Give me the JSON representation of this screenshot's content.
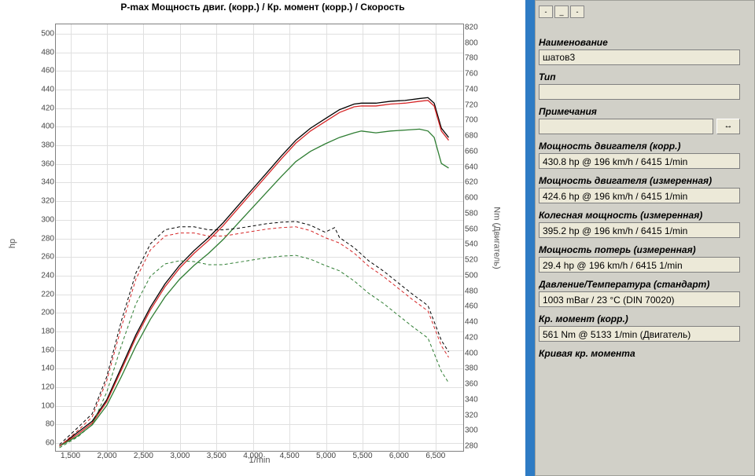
{
  "chart": {
    "title": "P-max Мощность двиг. (корр.) / Кр. момент (корр.) / Скорость",
    "type": "line",
    "x_axis": {
      "label": "1/min",
      "min": 1300,
      "max": 6900,
      "ticks": [
        1500,
        2000,
        2500,
        3000,
        3500,
        4000,
        4500,
        5000,
        5500,
        6000,
        6500
      ],
      "tick_labels": [
        "1,500",
        "2,000",
        "2,500",
        "3,000",
        "3,500",
        "4,000",
        "4,500",
        "5,000",
        "5,500",
        "6,000",
        "6,500"
      ]
    },
    "y1_axis": {
      "label": "hp",
      "min": 50,
      "max": 510,
      "ticks": [
        60,
        80,
        100,
        120,
        140,
        160,
        180,
        200,
        220,
        240,
        260,
        280,
        300,
        320,
        340,
        360,
        380,
        400,
        420,
        440,
        460,
        480,
        500
      ]
    },
    "y2_axis": {
      "label": "Nm (Двигатель)",
      "min": 272,
      "max": 824,
      "ticks": [
        280,
        300,
        320,
        340,
        360,
        380,
        400,
        420,
        440,
        460,
        480,
        500,
        520,
        540,
        560,
        580,
        600,
        620,
        640,
        660,
        680,
        700,
        720,
        740,
        760,
        780,
        800,
        820
      ]
    },
    "grid_color": "#e0e0e0",
    "background": "#ffffff",
    "series": [
      {
        "name": "power_black",
        "axis": "y1",
        "color": "#000000",
        "width": 1.3,
        "dash": "none",
        "data": [
          [
            1350,
            55
          ],
          [
            1600,
            70
          ],
          [
            1800,
            82
          ],
          [
            2000,
            105
          ],
          [
            2200,
            140
          ],
          [
            2400,
            175
          ],
          [
            2600,
            205
          ],
          [
            2800,
            230
          ],
          [
            3000,
            250
          ],
          [
            3200,
            266
          ],
          [
            3400,
            280
          ],
          [
            3600,
            296
          ],
          [
            3800,
            314
          ],
          [
            4000,
            332
          ],
          [
            4200,
            350
          ],
          [
            4400,
            368
          ],
          [
            4600,
            385
          ],
          [
            4800,
            398
          ],
          [
            5000,
            408
          ],
          [
            5200,
            418
          ],
          [
            5400,
            424
          ],
          [
            5500,
            425
          ],
          [
            5700,
            425
          ],
          [
            5900,
            427
          ],
          [
            6100,
            428
          ],
          [
            6300,
            430
          ],
          [
            6415,
            431
          ],
          [
            6500,
            425
          ],
          [
            6600,
            398
          ],
          [
            6700,
            388
          ]
        ]
      },
      {
        "name": "power_red",
        "axis": "y1",
        "color": "#d62728",
        "width": 1.3,
        "dash": "none",
        "data": [
          [
            1350,
            55
          ],
          [
            1600,
            68
          ],
          [
            1800,
            80
          ],
          [
            2000,
            103
          ],
          [
            2200,
            137
          ],
          [
            2400,
            172
          ],
          [
            2600,
            202
          ],
          [
            2800,
            227
          ],
          [
            3000,
            247
          ],
          [
            3200,
            263
          ],
          [
            3400,
            277
          ],
          [
            3600,
            293
          ],
          [
            3800,
            311
          ],
          [
            4000,
            329
          ],
          [
            4200,
            347
          ],
          [
            4400,
            365
          ],
          [
            4600,
            382
          ],
          [
            4800,
            395
          ],
          [
            5000,
            405
          ],
          [
            5200,
            415
          ],
          [
            5400,
            421
          ],
          [
            5500,
            422
          ],
          [
            5700,
            422
          ],
          [
            5900,
            424
          ],
          [
            6100,
            425
          ],
          [
            6300,
            427
          ],
          [
            6415,
            428
          ],
          [
            6500,
            422
          ],
          [
            6600,
            395
          ],
          [
            6700,
            385
          ]
        ]
      },
      {
        "name": "power_green",
        "axis": "y1",
        "color": "#2e7d32",
        "width": 1.3,
        "dash": "none",
        "data": [
          [
            1350,
            55
          ],
          [
            1600,
            66
          ],
          [
            1800,
            78
          ],
          [
            2000,
            99
          ],
          [
            2200,
            130
          ],
          [
            2400,
            163
          ],
          [
            2600,
            192
          ],
          [
            2800,
            216
          ],
          [
            3000,
            235
          ],
          [
            3200,
            250
          ],
          [
            3400,
            263
          ],
          [
            3600,
            278
          ],
          [
            3800,
            295
          ],
          [
            4000,
            312
          ],
          [
            4200,
            329
          ],
          [
            4400,
            346
          ],
          [
            4600,
            362
          ],
          [
            4800,
            373
          ],
          [
            5000,
            381
          ],
          [
            5200,
            388
          ],
          [
            5400,
            393
          ],
          [
            5500,
            395
          ],
          [
            5700,
            393
          ],
          [
            5900,
            395
          ],
          [
            6100,
            396
          ],
          [
            6300,
            397
          ],
          [
            6415,
            395
          ],
          [
            6500,
            388
          ],
          [
            6600,
            360
          ],
          [
            6700,
            355
          ]
        ]
      },
      {
        "name": "torque_black_dash",
        "axis": "y2",
        "color": "#000000",
        "width": 1,
        "dash": "4,3",
        "data": [
          [
            1350,
            280
          ],
          [
            1600,
            302
          ],
          [
            1800,
            320
          ],
          [
            2000,
            368
          ],
          [
            2200,
            440
          ],
          [
            2400,
            502
          ],
          [
            2600,
            540
          ],
          [
            2800,
            558
          ],
          [
            3000,
            562
          ],
          [
            3200,
            562
          ],
          [
            3400,
            558
          ],
          [
            3600,
            558
          ],
          [
            3800,
            560
          ],
          [
            4000,
            563
          ],
          [
            4200,
            566
          ],
          [
            4400,
            568
          ],
          [
            4600,
            569
          ],
          [
            4800,
            564
          ],
          [
            5000,
            555
          ],
          [
            5133,
            561
          ],
          [
            5200,
            548
          ],
          [
            5400,
            535
          ],
          [
            5600,
            518
          ],
          [
            5800,
            505
          ],
          [
            6000,
            490
          ],
          [
            6200,
            475
          ],
          [
            6415,
            460
          ],
          [
            6600,
            415
          ],
          [
            6700,
            400
          ]
        ]
      },
      {
        "name": "torque_red_dash",
        "axis": "y2",
        "color": "#d62728",
        "width": 1,
        "dash": "4,3",
        "data": [
          [
            1350,
            278
          ],
          [
            1600,
            298
          ],
          [
            1800,
            316
          ],
          [
            2000,
            363
          ],
          [
            2200,
            432
          ],
          [
            2400,
            494
          ],
          [
            2600,
            532
          ],
          [
            2800,
            550
          ],
          [
            3000,
            554
          ],
          [
            3200,
            554
          ],
          [
            3400,
            550
          ],
          [
            3600,
            550
          ],
          [
            3800,
            553
          ],
          [
            4000,
            556
          ],
          [
            4200,
            559
          ],
          [
            4400,
            561
          ],
          [
            4600,
            562
          ],
          [
            4800,
            557
          ],
          [
            5000,
            548
          ],
          [
            5200,
            541
          ],
          [
            5400,
            528
          ],
          [
            5600,
            511
          ],
          [
            5800,
            498
          ],
          [
            6000,
            483
          ],
          [
            6200,
            468
          ],
          [
            6415,
            453
          ],
          [
            6600,
            408
          ],
          [
            6700,
            393
          ]
        ]
      },
      {
        "name": "torque_green_dash",
        "axis": "y2",
        "color": "#2e7d32",
        "width": 1,
        "dash": "4,3",
        "data": [
          [
            1350,
            276
          ],
          [
            1600,
            290
          ],
          [
            1800,
            306
          ],
          [
            2000,
            348
          ],
          [
            2200,
            408
          ],
          [
            2400,
            462
          ],
          [
            2600,
            498
          ],
          [
            2800,
            514
          ],
          [
            3000,
            518
          ],
          [
            3200,
            517
          ],
          [
            3400,
            513
          ],
          [
            3600,
            513
          ],
          [
            3800,
            516
          ],
          [
            4000,
            519
          ],
          [
            4200,
            522
          ],
          [
            4400,
            524
          ],
          [
            4600,
            525
          ],
          [
            4800,
            520
          ],
          [
            5000,
            512
          ],
          [
            5200,
            505
          ],
          [
            5400,
            492
          ],
          [
            5600,
            476
          ],
          [
            5800,
            463
          ],
          [
            6000,
            448
          ],
          [
            6200,
            433
          ],
          [
            6415,
            418
          ],
          [
            6600,
            375
          ],
          [
            6700,
            360
          ]
        ]
      }
    ]
  },
  "panel": {
    "name_label": "Наименование",
    "name_value": "шатов3",
    "type_label": "Тип",
    "type_value": "",
    "notes_label": "Примечания",
    "notes_value": "",
    "swap_icon": "↔",
    "engine_power_corr_label": "Мощность двигателя (корр.)",
    "engine_power_corr_value": "430.8 hp @ 196 km/h / 6415 1/min",
    "engine_power_meas_label": "Мощность двигателя (измеренная)",
    "engine_power_meas_value": "424.6 hp @ 196 km/h / 6415 1/min",
    "wheel_power_label": "Колесная мощность (измеренная)",
    "wheel_power_value": "395.2 hp @ 196 km/h / 6415 1/min",
    "power_loss_label": "Мощность потерь (измеренная)",
    "power_loss_value": "29.4 hp @ 196 km/h / 6415 1/min",
    "pressure_temp_label": "Давление/Температура (стандарт)",
    "pressure_temp_value": "1003 mBar / 23 °C (DIN 70020)",
    "torque_corr_label": "Кр. момент (корр.)",
    "torque_corr_value": "561 Nm @ 5133 1/min (Двигатель)",
    "torque_curve_label": "Кривая кр. момента"
  }
}
